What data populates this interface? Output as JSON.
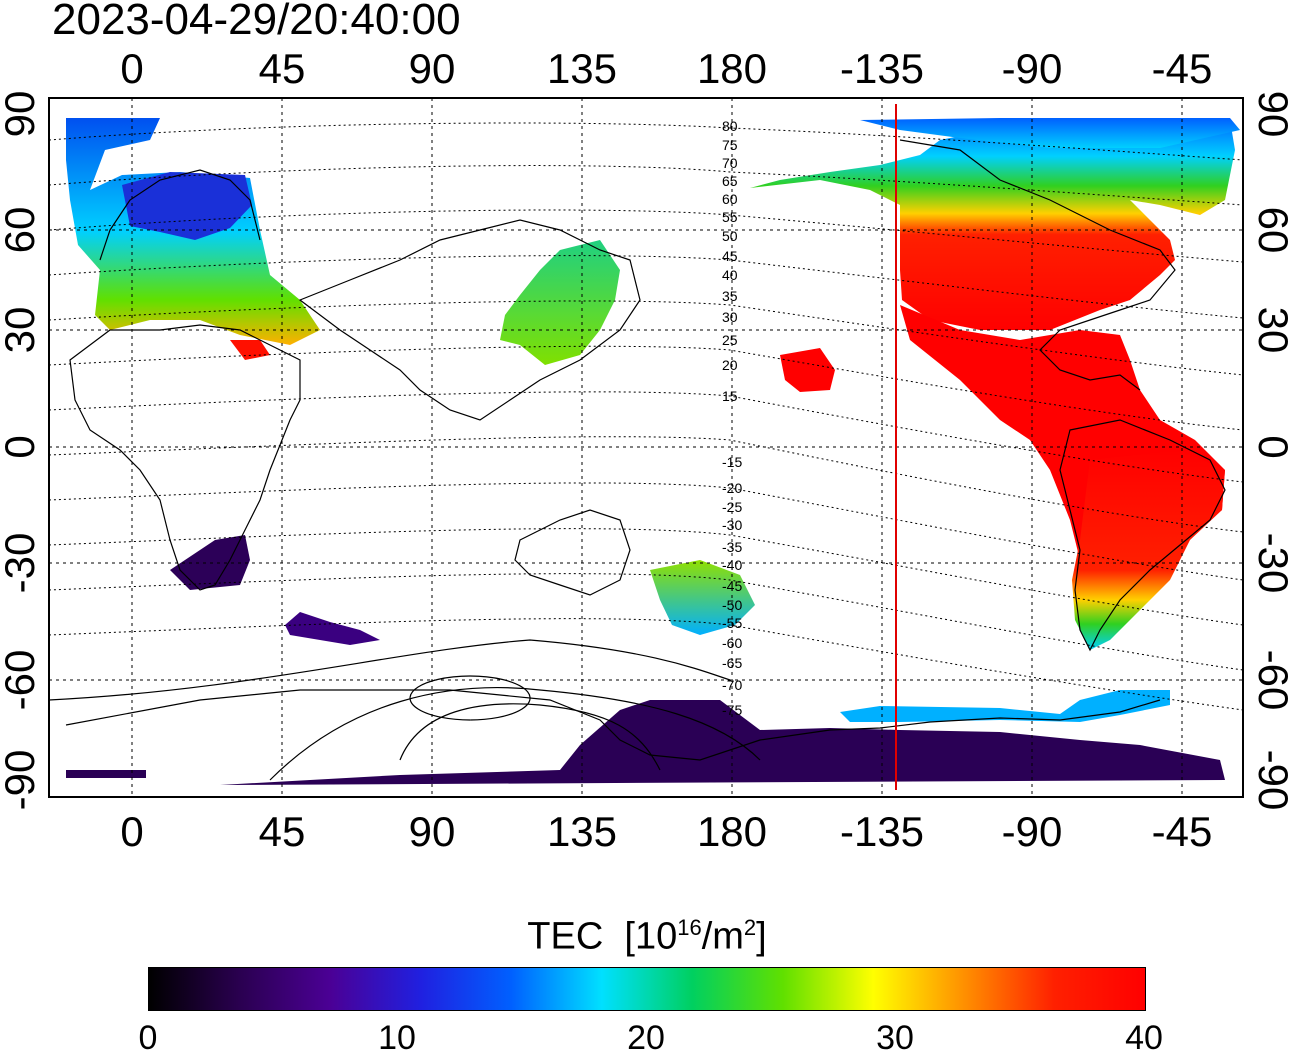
{
  "title": "2023-04-29/20:40:00",
  "map": {
    "top_lon_labels": [
      "0",
      "45",
      "90",
      "135",
      "180",
      "-135",
      "-90",
      "-45"
    ],
    "bottom_lon_labels": [
      "0",
      "45",
      "90",
      "135",
      "180",
      "-135",
      "-90",
      "-45"
    ],
    "left_lat_labels": [
      "90",
      "60",
      "30",
      "0",
      "-30",
      "-60",
      "-90"
    ],
    "right_lat_labels": [
      "90",
      "60",
      "30",
      "0",
      "-30",
      "-60",
      "-90"
    ],
    "mlat_labels": [
      "80",
      "75",
      "70",
      "65",
      "60",
      "55",
      "50",
      "45",
      "40",
      "35",
      "30",
      "25",
      "20",
      "15",
      "-15",
      "-20",
      "-25",
      "-30",
      "-35",
      "-40",
      "-45",
      "-50",
      "-55",
      "-60",
      "-65",
      "-70",
      "-75"
    ],
    "terminator_line_color": "#e00000"
  },
  "colorbar": {
    "label_prefix": "TEC  [10",
    "label_exp1": "16",
    "label_mid": "/m",
    "label_exp2": "2",
    "label_suffix": "]",
    "ticks": [
      "0",
      "10",
      "20",
      "30",
      "40"
    ],
    "range": [
      0,
      40
    ],
    "colors": [
      "#000000",
      "#2a0050",
      "#4b0095",
      "#2020e0",
      "#0060ff",
      "#00e0ff",
      "#00d060",
      "#60e000",
      "#ffff00",
      "#ff9000",
      "#ff2000",
      "#ff0000"
    ]
  }
}
